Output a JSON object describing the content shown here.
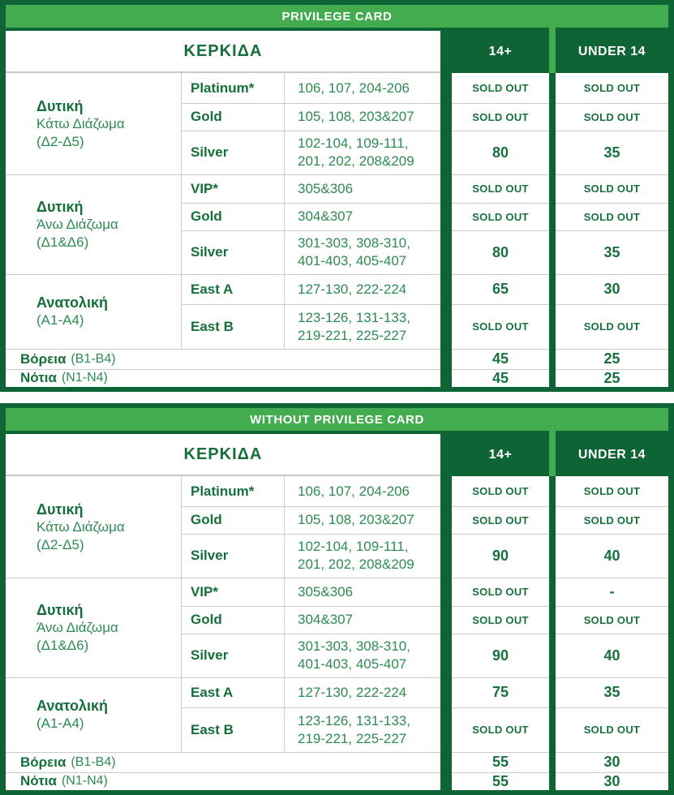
{
  "colors": {
    "dark_green": "#0e6434",
    "light_green": "#42ac4f",
    "text_bold_green": "#156f3b",
    "text_regular_green": "#2e8b52",
    "value_green": "#17713d",
    "row_line_gray": "#c9cdca",
    "white": "#ffffff"
  },
  "columns": {
    "stand": "ΚΕΡΚΙΔΑ",
    "adult": "14+",
    "child": "UNDER 14"
  },
  "tables": [
    {
      "title": "PRIVILEGE CARD",
      "groups": [
        {
          "stand": {
            "bold": "Δυτική",
            "lines": [
              "Κάτω Διάζωμα",
              "(Δ2-Δ5)"
            ]
          },
          "rows": [
            {
              "tier": "Platinum*",
              "sections": [
                "106, 107, 204-206"
              ],
              "adult": "SOLD OUT",
              "child": "SOLD OUT"
            },
            {
              "tier": "Gold",
              "sections": [
                "105, 108, 203&207"
              ],
              "adult": "SOLD OUT",
              "child": "SOLD OUT"
            },
            {
              "tier": "Silver",
              "sections": [
                "102-104, 109-111,",
                "201, 202, 208&209"
              ],
              "adult": "80",
              "child": "35"
            }
          ]
        },
        {
          "stand": {
            "bold": "Δυτική",
            "lines": [
              "Άνω Διάζωμα",
              "(Δ1&Δ6)"
            ]
          },
          "rows": [
            {
              "tier": "VIP*",
              "sections": [
                "305&306"
              ],
              "adult": "SOLD OUT",
              "child": "SOLD OUT"
            },
            {
              "tier": "Gold",
              "sections": [
                "304&307"
              ],
              "adult": "SOLD OUT",
              "child": "SOLD OUT"
            },
            {
              "tier": "Silver",
              "sections": [
                "301-303, 308-310,",
                "401-403, 405-407"
              ],
              "adult": "80",
              "child": "35"
            }
          ]
        },
        {
          "stand": {
            "bold": "Ανατολική",
            "lines": [
              "(A1-A4)"
            ]
          },
          "rows": [
            {
              "tier": "East A",
              "sections": [
                "127-130, 222-224"
              ],
              "adult": "65",
              "child": "30"
            },
            {
              "tier": "East B",
              "sections": [
                "123-126, 131-133,",
                "219-221, 225-227"
              ],
              "adult": "SOLD OUT",
              "child": "SOLD OUT"
            }
          ]
        }
      ],
      "footer_rows": [
        {
          "bold": "Βόρεια",
          "regular": "(B1-B4)",
          "adult": "45",
          "child": "25"
        },
        {
          "bold": "Νότια",
          "regular": "(N1-N4)",
          "adult": "45",
          "child": "25"
        }
      ]
    },
    {
      "title": "WITHOUT PRIVILEGE CARD",
      "groups": [
        {
          "stand": {
            "bold": "Δυτική",
            "lines": [
              "Κάτω Διάζωμα",
              "(Δ2-Δ5)"
            ]
          },
          "rows": [
            {
              "tier": "Platinum*",
              "sections": [
                "106, 107, 204-206"
              ],
              "adult": "SOLD OUT",
              "child": "SOLD OUT"
            },
            {
              "tier": "Gold",
              "sections": [
                "105, 108, 203&207"
              ],
              "adult": "SOLD OUT",
              "child": "SOLD OUT"
            },
            {
              "tier": "Silver",
              "sections": [
                "102-104, 109-111,",
                "201, 202, 208&209"
              ],
              "adult": "90",
              "child": "40"
            }
          ]
        },
        {
          "stand": {
            "bold": "Δυτική",
            "lines": [
              "Άνω Διάζωμα",
              "(Δ1&Δ6)"
            ]
          },
          "rows": [
            {
              "tier": "VIP*",
              "sections": [
                "305&306"
              ],
              "adult": "SOLD OUT",
              "child": "-"
            },
            {
              "tier": "Gold",
              "sections": [
                "304&307"
              ],
              "adult": "SOLD OUT",
              "child": "SOLD OUT"
            },
            {
              "tier": "Silver",
              "sections": [
                "301-303, 308-310,",
                "401-403, 405-407"
              ],
              "adult": "90",
              "child": "40"
            }
          ]
        },
        {
          "stand": {
            "bold": "Ανατολική",
            "lines": [
              "(A1-A4)"
            ]
          },
          "rows": [
            {
              "tier": "East A",
              "sections": [
                "127-130, 222-224"
              ],
              "adult": "75",
              "child": "35"
            },
            {
              "tier": "East B",
              "sections": [
                "123-126, 131-133,",
                "219-221, 225-227"
              ],
              "adult": "SOLD OUT",
              "child": "SOLD OUT"
            }
          ]
        }
      ],
      "footer_rows": [
        {
          "bold": "Βόρεια",
          "regular": "(B1-B4)",
          "adult": "55",
          "child": "30"
        },
        {
          "bold": "Νότια",
          "regular": "(N1-N4)",
          "adult": "55",
          "child": "30"
        }
      ]
    }
  ]
}
